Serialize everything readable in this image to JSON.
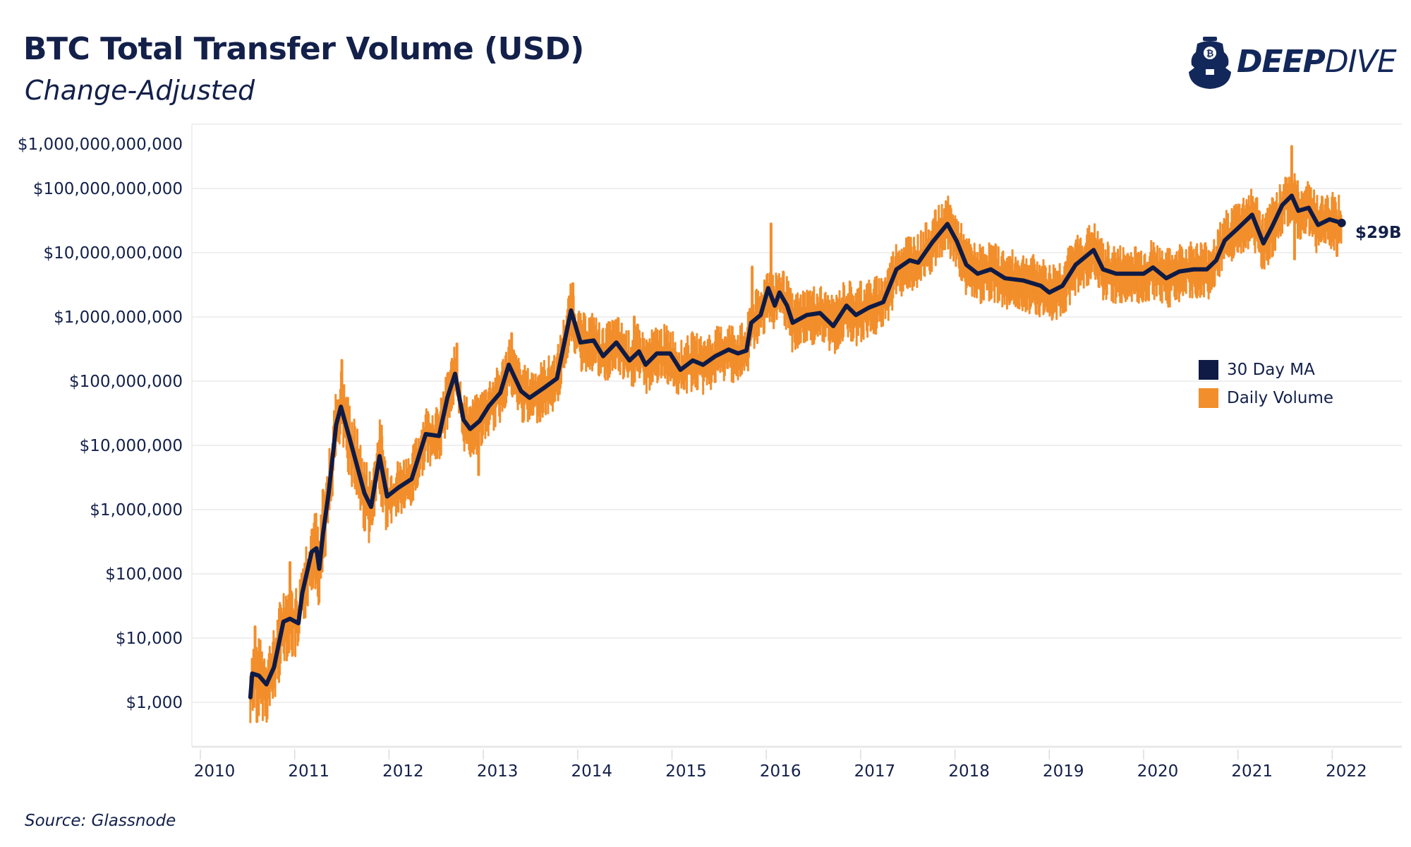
{
  "header": {
    "title": "BTC Total Transfer Volume (USD)",
    "subtitle": "Change-Adjusted"
  },
  "logo": {
    "text_bold": "DEEP",
    "text_light": "DIVE",
    "icon": "diving-helmet-bitcoin-icon"
  },
  "footer": {
    "source": "Source: Glassnode"
  },
  "colors": {
    "ma": "#0f1b45",
    "daily": "#f28e2b",
    "text": "#13204a",
    "grid": "#efefef"
  },
  "chart_data": {
    "type": "line",
    "title": "BTC Total Transfer Volume (USD)",
    "subtitle": "Change-Adjusted",
    "y_scale": "log",
    "ylim": [
      300,
      1000000000000
    ],
    "xlim": [
      2010,
      2022.8
    ],
    "grid": true,
    "legend_position": "right",
    "y_tick_labels": [
      {
        "value": 1000000000000,
        "label": "$1,000,000,000,000"
      },
      {
        "value": 100000000000,
        "label": "$100,000,000,000"
      },
      {
        "value": 10000000000,
        "label": "$10,000,000,000"
      },
      {
        "value": 1000000000,
        "label": "$1,000,000,000"
      },
      {
        "value": 100000000,
        "label": "$100,000,000"
      },
      {
        "value": 10000000,
        "label": "$10,000,000"
      },
      {
        "value": 1000000,
        "label": "$1,000,000"
      },
      {
        "value": 100000,
        "label": "$100,000"
      },
      {
        "value": 10000,
        "label": "$10,000"
      },
      {
        "value": 1000,
        "label": "$1,000"
      }
    ],
    "x_tick_labels": [
      "2010",
      "2011",
      "2012",
      "2013",
      "2014",
      "2015",
      "2016",
      "2017",
      "2018",
      "2019",
      "2020",
      "2021",
      "2022"
    ],
    "end_label": "$29B",
    "series": [
      {
        "name": "30 Day MA",
        "color": "#0f1b45",
        "points": [
          [
            2010.53,
            1200
          ],
          [
            2010.55,
            2800
          ],
          [
            2010.62,
            2600
          ],
          [
            2010.7,
            1900
          ],
          [
            2010.78,
            3500
          ],
          [
            2010.88,
            18000
          ],
          [
            2010.95,
            20000
          ],
          [
            2011.04,
            17000
          ],
          [
            2011.08,
            50000
          ],
          [
            2011.18,
            220000
          ],
          [
            2011.23,
            250000
          ],
          [
            2011.26,
            120000
          ],
          [
            2011.3,
            420000
          ],
          [
            2011.36,
            1800000
          ],
          [
            2011.44,
            21000000
          ],
          [
            2011.49,
            40000000
          ],
          [
            2011.57,
            15000000
          ],
          [
            2011.66,
            4900000
          ],
          [
            2011.74,
            1800000
          ],
          [
            2011.81,
            1100000
          ],
          [
            2011.9,
            6800000
          ],
          [
            2011.98,
            1600000
          ],
          [
            2012.1,
            2200000
          ],
          [
            2012.24,
            3000000
          ],
          [
            2012.39,
            15000000
          ],
          [
            2012.53,
            14000000
          ],
          [
            2012.62,
            56000000
          ],
          [
            2012.7,
            130000000
          ],
          [
            2012.79,
            25000000
          ],
          [
            2012.86,
            18000000
          ],
          [
            2012.96,
            24000000
          ],
          [
            2013.06,
            41000000
          ],
          [
            2013.18,
            66000000
          ],
          [
            2013.27,
            180000000
          ],
          [
            2013.4,
            70000000
          ],
          [
            2013.49,
            55000000
          ],
          [
            2013.64,
            78000000
          ],
          [
            2013.78,
            110000000
          ],
          [
            2013.93,
            1260000000
          ],
          [
            2014.03,
            400000000
          ],
          [
            2014.17,
            430000000
          ],
          [
            2014.27,
            245000000
          ],
          [
            2014.41,
            400000000
          ],
          [
            2014.55,
            210000000
          ],
          [
            2014.65,
            290000000
          ],
          [
            2014.72,
            180000000
          ],
          [
            2014.84,
            270000000
          ],
          [
            2014.98,
            270000000
          ],
          [
            2015.09,
            150000000
          ],
          [
            2015.22,
            210000000
          ],
          [
            2015.33,
            180000000
          ],
          [
            2015.46,
            245000000
          ],
          [
            2015.6,
            310000000
          ],
          [
            2015.7,
            270000000
          ],
          [
            2015.79,
            300000000
          ],
          [
            2015.84,
            810000000
          ],
          [
            2015.94,
            1070000000
          ],
          [
            2016.02,
            2800000000
          ],
          [
            2016.09,
            1500000000
          ],
          [
            2016.14,
            2400000000
          ],
          [
            2016.22,
            1500000000
          ],
          [
            2016.28,
            810000000
          ],
          [
            2016.43,
            1070000000
          ],
          [
            2016.57,
            1150000000
          ],
          [
            2016.71,
            720000000
          ],
          [
            2016.85,
            1500000000
          ],
          [
            2016.95,
            1070000000
          ],
          [
            2017.09,
            1400000000
          ],
          [
            2017.24,
            1700000000
          ],
          [
            2017.38,
            5500000000
          ],
          [
            2017.52,
            7600000000
          ],
          [
            2017.61,
            7000000000
          ],
          [
            2017.76,
            14500000000
          ],
          [
            2017.92,
            28000000000
          ],
          [
            2018.02,
            15000000000
          ],
          [
            2018.12,
            6500000000
          ],
          [
            2018.24,
            4700000000
          ],
          [
            2018.38,
            5500000000
          ],
          [
            2018.53,
            4000000000
          ],
          [
            2018.72,
            3700000000
          ],
          [
            2018.91,
            3050000000
          ],
          [
            2019.0,
            2400000000
          ],
          [
            2019.14,
            3050000000
          ],
          [
            2019.28,
            6500000000
          ],
          [
            2019.47,
            11000000000
          ],
          [
            2019.57,
            5500000000
          ],
          [
            2019.71,
            4700000000
          ],
          [
            2019.86,
            4700000000
          ],
          [
            2020.0,
            4700000000
          ],
          [
            2020.1,
            5900000000
          ],
          [
            2020.24,
            4000000000
          ],
          [
            2020.38,
            5100000000
          ],
          [
            2020.53,
            5500000000
          ],
          [
            2020.67,
            5500000000
          ],
          [
            2020.77,
            7600000000
          ],
          [
            2020.86,
            15500000000
          ],
          [
            2021.0,
            24000000000
          ],
          [
            2021.15,
            39000000000
          ],
          [
            2021.27,
            14000000000
          ],
          [
            2021.36,
            25000000000
          ],
          [
            2021.47,
            55000000000
          ],
          [
            2021.57,
            77000000000
          ],
          [
            2021.64,
            45000000000
          ],
          [
            2021.75,
            50000000000
          ],
          [
            2021.85,
            27000000000
          ],
          [
            2021.97,
            33000000000
          ],
          [
            2022.1,
            29000000000
          ]
        ]
      },
      {
        "name": "Daily Volume",
        "color": "#f28e2b",
        "notable_highs": [
          [
            2010.58,
            15000
          ],
          [
            2010.95,
            150000
          ],
          [
            2011.3,
            2000000
          ],
          [
            2011.5,
            210000000
          ],
          [
            2011.92,
            20000000
          ],
          [
            2012.72,
            380000000
          ],
          [
            2013.3,
            550000000
          ],
          [
            2013.95,
            3300000000
          ],
          [
            2014.6,
            1000000000
          ],
          [
            2015.85,
            6000000000
          ],
          [
            2016.05,
            28000000000
          ],
          [
            2016.18,
            5000000000
          ],
          [
            2017.0,
            3500000000
          ],
          [
            2017.95,
            45000000000
          ],
          [
            2019.45,
            20000000000
          ],
          [
            2021.2,
            70000000000
          ],
          [
            2021.57,
            450000000000
          ],
          [
            2021.75,
            110000000000
          ],
          [
            2021.95,
            70000000000
          ]
        ],
        "notable_lows": [
          [
            2010.6,
            500
          ],
          [
            2011.82,
            600000
          ],
          [
            2012.95,
            3500000
          ],
          [
            2018.95,
            1300000000
          ],
          [
            2021.6,
            8000000000
          ],
          [
            2022.05,
            9000000000
          ]
        ]
      }
    ]
  },
  "legend": {
    "items": [
      {
        "label": "30 Day MA",
        "color": "#0f1b45"
      },
      {
        "label": "Daily Volume",
        "color": "#f28e2b"
      }
    ]
  }
}
